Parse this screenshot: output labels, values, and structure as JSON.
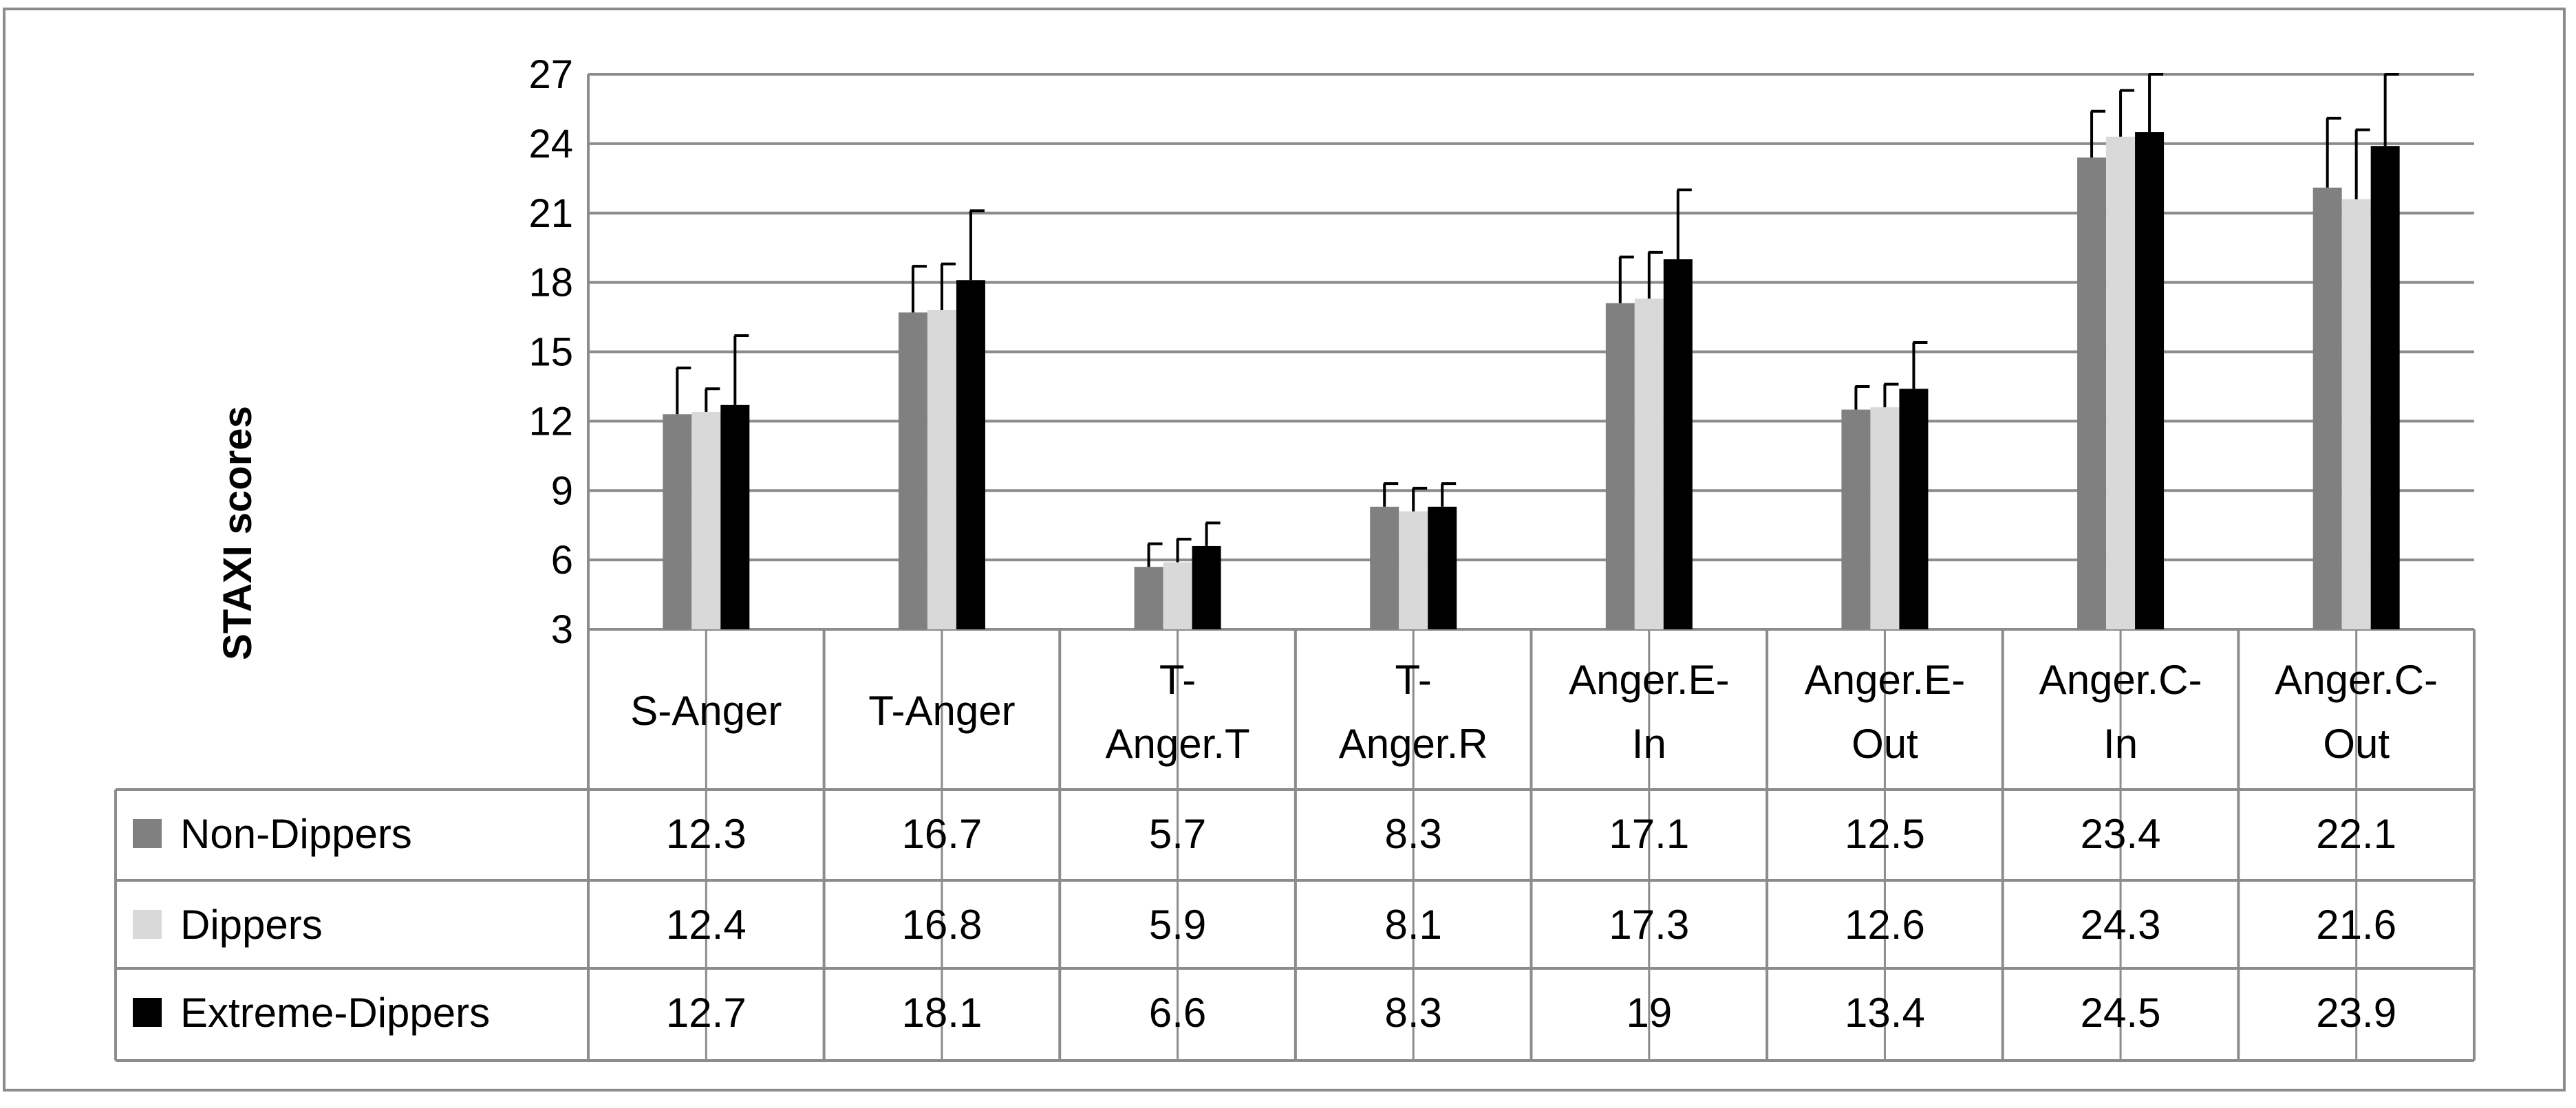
{
  "chart_data": {
    "type": "bar",
    "ylabel": "STAXI scores",
    "ylim": [
      3,
      27
    ],
    "yticks": [
      3,
      6,
      9,
      12,
      15,
      18,
      21,
      24,
      27
    ],
    "grid": true,
    "legend_placement": "data-table-left",
    "categories": [
      "S-Anger",
      "T-Anger",
      "T-Anger.T",
      "T-Anger.R",
      "Anger.E-In",
      "Anger.E-Out",
      "Anger.C-In",
      "Anger.C-Out"
    ],
    "category_lines": [
      [
        "S-Anger"
      ],
      [
        "T-Anger"
      ],
      [
        "T-",
        "Anger.T"
      ],
      [
        "T-",
        "Anger.R"
      ],
      [
        "Anger.E-",
        "In"
      ],
      [
        "Anger.E-",
        "Out"
      ],
      [
        "Anger.C-",
        "In"
      ],
      [
        "Anger.C-",
        "Out"
      ]
    ],
    "series": [
      {
        "name": "Non-Dippers",
        "color": "#808080",
        "values": [
          12.3,
          16.7,
          5.7,
          8.3,
          17.1,
          12.5,
          23.4,
          22.1
        ],
        "labels": [
          "12.3",
          "16.7",
          "5.7",
          "8.3",
          "17.1",
          "12.5",
          "23.4",
          "22.1"
        ],
        "errors": [
          2.0,
          2.0,
          1.0,
          1.0,
          2.0,
          1.0,
          2.0,
          3.0
        ]
      },
      {
        "name": "Dippers",
        "color": "#d9d9d9",
        "values": [
          12.4,
          16.8,
          5.9,
          8.1,
          17.3,
          12.6,
          24.3,
          21.6
        ],
        "labels": [
          "12.4",
          "16.8",
          "5.9",
          "8.1",
          "17.3",
          "12.6",
          "24.3",
          "21.6"
        ],
        "errors": [
          1.0,
          2.0,
          1.0,
          1.0,
          2.0,
          1.0,
          2.0,
          3.0
        ]
      },
      {
        "name": "Extreme-Dippers",
        "color": "#000000",
        "values": [
          12.7,
          18.1,
          6.6,
          8.3,
          19.0,
          13.4,
          24.5,
          23.9
        ],
        "labels": [
          "12.7",
          "18.1",
          "6.6",
          "8.3",
          "19",
          "13.4",
          "24.5",
          "23.9"
        ],
        "errors": [
          3.0,
          3.0,
          1.0,
          1.0,
          3.0,
          2.0,
          3.0,
          3.5
        ]
      }
    ]
  }
}
